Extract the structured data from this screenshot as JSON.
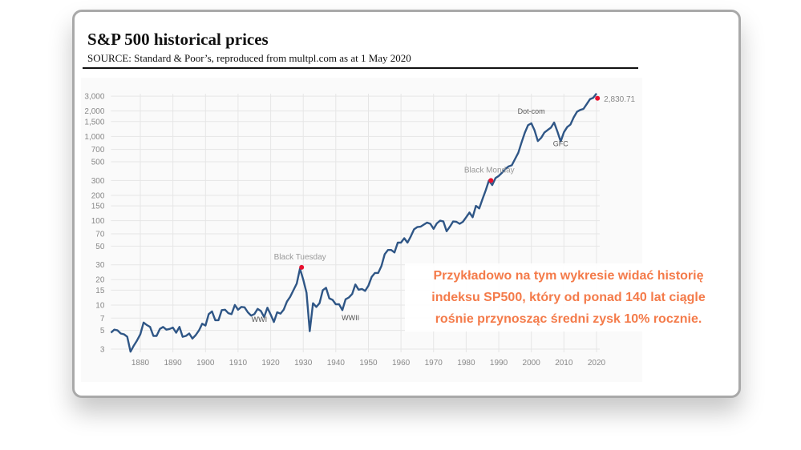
{
  "header": {
    "title": "S&P 500 historical prices",
    "source": "SOURCE: Standard & Poor’s, reproduced from multpl.com as at 1 May 2020"
  },
  "note": {
    "lines": [
      "Przykładowo na tym wykresie widać historię",
      "indeksu SP500, który od ponad 140 lat ciągle",
      "rośnie przynosząc średni zysk 10% rocznie."
    ]
  },
  "colors": {
    "line": "#2f5686",
    "marker": "#e8102e",
    "note": "#f47b4a",
    "grid": "#e6e6e6",
    "tick": "#888888"
  },
  "chart_data": {
    "type": "line",
    "title": "S&P 500 historical prices",
    "xlabel": "",
    "ylabel": "",
    "yscale": "log",
    "xlim": [
      1871,
      2020.5
    ],
    "ylim": [
      2.6,
      3300
    ],
    "grid": true,
    "x_ticks": [
      "1880",
      "1890",
      "1900",
      "1910",
      "1920",
      "1930",
      "1940",
      "1950",
      "1960",
      "1970",
      "1980",
      "1990",
      "2000",
      "2010",
      "2020"
    ],
    "y_ticks": [
      {
        "v": 3,
        "label": "3"
      },
      {
        "v": 5,
        "label": "5"
      },
      {
        "v": 7,
        "label": "7"
      },
      {
        "v": 10,
        "label": "10"
      },
      {
        "v": 15,
        "label": "15"
      },
      {
        "v": 20,
        "label": "20"
      },
      {
        "v": 30,
        "label": "30"
      },
      {
        "v": 50,
        "label": "50"
      },
      {
        "v": 70,
        "label": "70"
      },
      {
        "v": 100,
        "label": "100"
      },
      {
        "v": 150,
        "label": "150"
      },
      {
        "v": 200,
        "label": "200"
      },
      {
        "v": 300,
        "label": "300"
      },
      {
        "v": 500,
        "label": "500"
      },
      {
        "v": 700,
        "label": "700"
      },
      {
        "v": 1000,
        "label": "1,000"
      },
      {
        "v": 1500,
        "label": "1,500"
      },
      {
        "v": 2000,
        "label": "2,000"
      },
      {
        "v": 3000,
        "label": "3,000"
      }
    ],
    "series": [
      {
        "name": "S&P 500",
        "x": [
          1871,
          1872,
          1873,
          1874,
          1875,
          1876,
          1877,
          1878,
          1879,
          1880,
          1881,
          1882,
          1883,
          1884,
          1885,
          1886,
          1887,
          1888,
          1889,
          1890,
          1891,
          1892,
          1893,
          1894,
          1895,
          1896,
          1897,
          1898,
          1899,
          1900,
          1901,
          1902,
          1903,
          1904,
          1905,
          1906,
          1907,
          1908,
          1909,
          1910,
          1911,
          1912,
          1913,
          1914,
          1915,
          1916,
          1917,
          1918,
          1919,
          1920,
          1921,
          1922,
          1923,
          1924,
          1925,
          1926,
          1927,
          1928,
          1929,
          1930,
          1931,
          1932,
          1933,
          1934,
          1935,
          1936,
          1937,
          1938,
          1939,
          1940,
          1941,
          1942,
          1943,
          1944,
          1945,
          1946,
          1947,
          1948,
          1949,
          1950,
          1951,
          1952,
          1953,
          1954,
          1955,
          1956,
          1957,
          1958,
          1959,
          1960,
          1961,
          1962,
          1963,
          1964,
          1965,
          1966,
          1967,
          1968,
          1969,
          1970,
          1971,
          1972,
          1973,
          1974,
          1975,
          1976,
          1977,
          1978,
          1979,
          1980,
          1981,
          1982,
          1983,
          1984,
          1985,
          1986,
          1987,
          1988,
          1989,
          1990,
          1991,
          1992,
          1993,
          1994,
          1995,
          1996,
          1997,
          1998,
          1999,
          2000,
          2001,
          2002,
          2003,
          2004,
          2005,
          2006,
          2007,
          2008,
          2009,
          2010,
          2011,
          2012,
          2013,
          2014,
          2015,
          2016,
          2017,
          2018,
          2019,
          2020
        ],
        "values": [
          4.7,
          5.1,
          5.0,
          4.6,
          4.5,
          4.2,
          2.8,
          3.3,
          3.8,
          4.5,
          6.2,
          5.8,
          5.5,
          4.3,
          4.3,
          5.2,
          5.5,
          5.1,
          5.2,
          5.4,
          4.7,
          5.5,
          4.2,
          4.3,
          4.6,
          4.0,
          4.4,
          5.0,
          6.0,
          5.7,
          7.8,
          8.4,
          6.6,
          6.6,
          8.7,
          8.8,
          8.0,
          7.8,
          10,
          8.8,
          9.5,
          9.4,
          8.2,
          7.5,
          7.8,
          9.0,
          8.5,
          7.2,
          9.3,
          7.7,
          6.3,
          8.2,
          7.9,
          8.8,
          11,
          12.5,
          15,
          18,
          27,
          20,
          14,
          4.9,
          10.5,
          9.5,
          10.5,
          15,
          16,
          12,
          11.5,
          10.2,
          10.2,
          8.7,
          11.7,
          12.3,
          13.5,
          17.5,
          15.2,
          15.5,
          14.7,
          17,
          21.5,
          24,
          24,
          29,
          40,
          45,
          45,
          42,
          55,
          55,
          62,
          55,
          65,
          79,
          84,
          85,
          90,
          95,
          92,
          80,
          93,
          100,
          98,
          75,
          85,
          98,
          97,
          92,
          97,
          110,
          125,
          110,
          150,
          140,
          180,
          230,
          300,
          265,
          320,
          340,
          370,
          410,
          440,
          455,
          540,
          640,
          850,
          1110,
          1360,
          1430,
          1180,
          880,
          960,
          1110,
          1190,
          1270,
          1460,
          1140,
          870,
          1120,
          1290,
          1380,
          1680,
          1960,
          2060,
          2120,
          2420,
          2760,
          2870,
          3230
        ]
      }
    ],
    "markers": [
      {
        "x": 1929.5,
        "y": 28,
        "label": "Black Tuesday"
      },
      {
        "x": 1987.6,
        "y": 300,
        "label": "Black Monday"
      },
      {
        "x": 2020.3,
        "y": 2830.71,
        "label": "2,830.71"
      }
    ],
    "annotations": [
      {
        "x": 1916.5,
        "y": 6.3,
        "label": "WWI"
      },
      {
        "x": 1944.5,
        "y": 6.6,
        "label": "WWII"
      },
      {
        "x": 2000,
        "y": 1850,
        "label": "Dot-com"
      },
      {
        "x": 2009,
        "y": 770,
        "label": "GFC"
      }
    ]
  }
}
